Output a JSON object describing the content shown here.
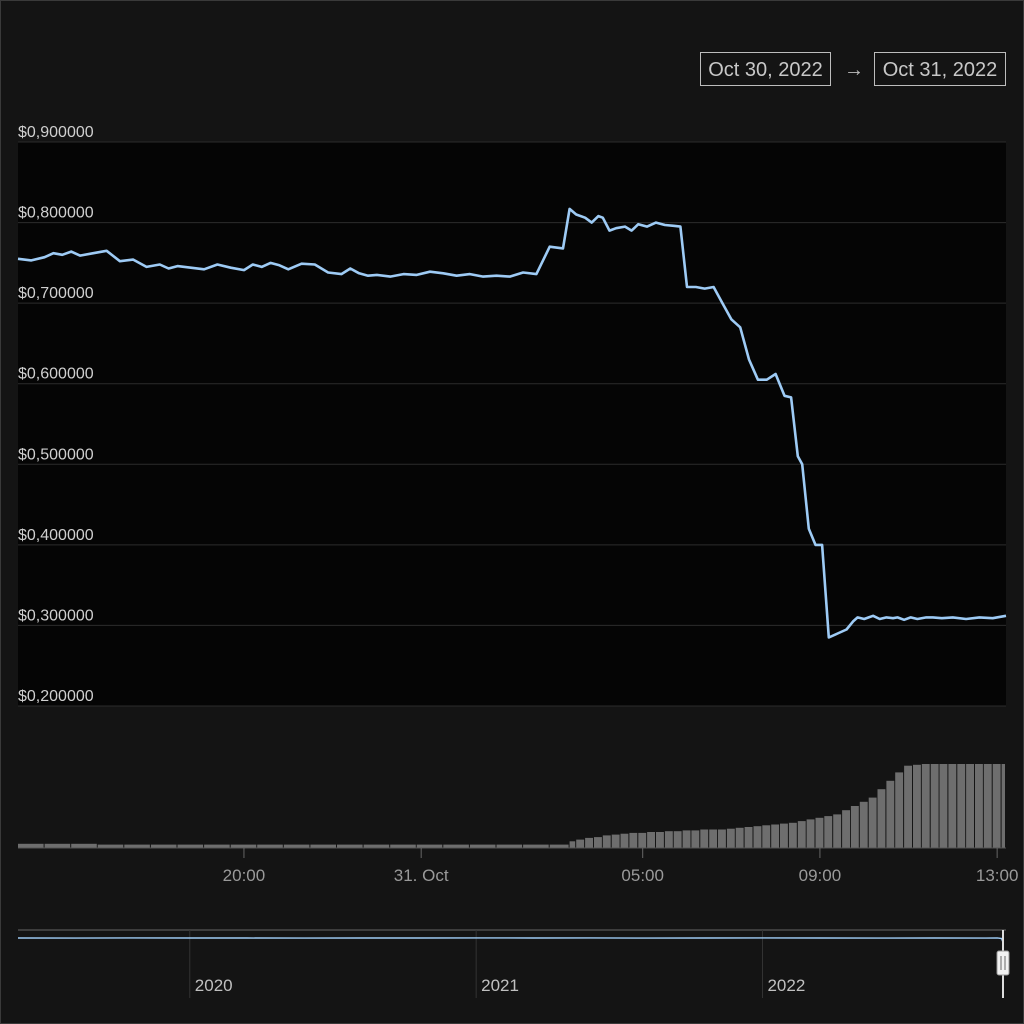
{
  "range_selector": {
    "from": "Oct 30, 2022",
    "arrow": "→",
    "to": "Oct 31, 2022"
  },
  "colors": {
    "background": "#141414",
    "plot_background": "#050505",
    "line": "#9ecbf5",
    "volume": "#6e6e6e",
    "grid": "#2c2c2c"
  },
  "chart_data": {
    "type": "line",
    "title": "",
    "xlabel": "",
    "ylabel": "",
    "ylim": [
      0.2,
      0.9
    ],
    "y_ticks": [
      "$0,900000",
      "$0,800000",
      "$0,700000",
      "$0,600000",
      "$0,500000",
      "$0,400000",
      "$0,300000",
      "$0,200000"
    ],
    "y_tick_values": [
      0.9,
      0.8,
      0.7,
      0.6,
      0.5,
      0.4,
      0.3,
      0.2
    ],
    "x_range_hours": [
      14.9,
      37.2
    ],
    "x_ticks": [
      {
        "label": "20:00",
        "hour": 20
      },
      {
        "label": "31. Oct",
        "hour": 24
      },
      {
        "label": "05:00",
        "hour": 29
      },
      {
        "label": "09:00",
        "hour": 33
      },
      {
        "label": "13:00",
        "hour": 37
      }
    ],
    "series": [
      {
        "x_hours": [
          14.9,
          15.2,
          15.5,
          15.7,
          15.9,
          16.1,
          16.3,
          16.6,
          16.9,
          17.2,
          17.5,
          17.8,
          18.1,
          18.3,
          18.5,
          18.8,
          19.1,
          19.4,
          19.7,
          20.0,
          20.2,
          20.4,
          20.6,
          20.8,
          21.0,
          21.3,
          21.6,
          21.9,
          22.2,
          22.4,
          22.6,
          22.8,
          23.0,
          23.3,
          23.6,
          23.9,
          24.2,
          24.5,
          24.8,
          25.1,
          25.4,
          25.7,
          26.0,
          26.3,
          26.6,
          26.9,
          27.2,
          27.35,
          27.5,
          27.7,
          27.85,
          28.0,
          28.1,
          28.25,
          28.4,
          28.6,
          28.75,
          28.9,
          29.1,
          29.3,
          29.5,
          29.7,
          29.85,
          30.0,
          30.2,
          30.4,
          30.6,
          30.8,
          31.0,
          31.2,
          31.4,
          31.6,
          31.8,
          32.0,
          32.2,
          32.35,
          32.5,
          32.6,
          32.75,
          32.9,
          33.05,
          33.2,
          33.4,
          33.6,
          33.75,
          33.85,
          34.0,
          34.1,
          34.2,
          34.35,
          34.5,
          34.65,
          34.75,
          34.9,
          35.05,
          35.2,
          35.4,
          35.55,
          35.75,
          36.0,
          36.3,
          36.6,
          36.9,
          37.2
        ],
        "values": [
          0.755,
          0.753,
          0.757,
          0.762,
          0.76,
          0.764,
          0.759,
          0.762,
          0.765,
          0.752,
          0.754,
          0.745,
          0.748,
          0.743,
          0.746,
          0.744,
          0.742,
          0.748,
          0.744,
          0.741,
          0.748,
          0.745,
          0.75,
          0.747,
          0.742,
          0.749,
          0.748,
          0.738,
          0.736,
          0.743,
          0.737,
          0.734,
          0.735,
          0.733,
          0.736,
          0.735,
          0.739,
          0.737,
          0.734,
          0.736,
          0.733,
          0.734,
          0.733,
          0.738,
          0.736,
          0.77,
          0.768,
          0.817,
          0.81,
          0.806,
          0.8,
          0.808,
          0.806,
          0.79,
          0.793,
          0.795,
          0.79,
          0.798,
          0.795,
          0.8,
          0.797,
          0.796,
          0.795,
          0.72,
          0.72,
          0.718,
          0.72,
          0.7,
          0.68,
          0.67,
          0.63,
          0.605,
          0.605,
          0.612,
          0.585,
          0.583,
          0.51,
          0.5,
          0.42,
          0.4,
          0.4,
          0.285,
          0.29,
          0.295,
          0.305,
          0.31,
          0.308,
          0.31,
          0.312,
          0.308,
          0.31,
          0.309,
          0.31,
          0.307,
          0.31,
          0.308,
          0.31,
          0.31,
          0.309,
          0.31,
          0.308,
          0.31,
          0.309,
          0.312
        ]
      }
    ],
    "volume": {
      "max": 100,
      "x_hours": [
        14.9,
        15.5,
        16.1,
        16.7,
        17.3,
        17.9,
        18.5,
        19.1,
        19.7,
        20.3,
        20.9,
        21.5,
        22.1,
        22.7,
        23.3,
        23.9,
        24.5,
        25.1,
        25.7,
        26.3,
        26.9,
        27.35,
        27.5,
        27.7,
        27.9,
        28.1,
        28.3,
        28.5,
        28.7,
        28.9,
        29.1,
        29.3,
        29.5,
        29.7,
        29.9,
        30.1,
        30.3,
        30.5,
        30.7,
        30.9,
        31.1,
        31.3,
        31.5,
        31.7,
        31.9,
        32.1,
        32.3,
        32.5,
        32.7,
        32.9,
        33.1,
        33.3,
        33.5,
        33.7,
        33.9,
        34.1,
        34.3,
        34.5,
        34.7,
        34.9,
        35.1,
        35.3,
        35.5,
        35.7,
        35.9,
        36.1,
        36.3,
        36.5,
        36.7,
        36.9,
        37.1
      ],
      "values": [
        5,
        5,
        5,
        4,
        4,
        4,
        4,
        4,
        4,
        4,
        4,
        4,
        4,
        4,
        4,
        4,
        4,
        4,
        4,
        4,
        4,
        8,
        10,
        12,
        13,
        15,
        16,
        17,
        18,
        18,
        19,
        19,
        20,
        20,
        21,
        21,
        22,
        22,
        22,
        23,
        24,
        25,
        26,
        27,
        28,
        29,
        30,
        32,
        34,
        36,
        38,
        40,
        45,
        50,
        55,
        60,
        70,
        80,
        90,
        98,
        99,
        100,
        100,
        100,
        100,
        100,
        100,
        100,
        100,
        100,
        100
      ]
    },
    "navigator": {
      "x_range_years": [
        2019.4,
        2022.84
      ],
      "ticks": [
        {
          "label": "2020",
          "year": 2020
        },
        {
          "label": "2021",
          "year": 2021
        },
        {
          "label": "2022",
          "year": 2022
        }
      ],
      "x_years": [
        2019.4,
        2019.6,
        2019.8,
        2020.0,
        2020.2,
        2020.4,
        2020.6,
        2020.8,
        2021.0,
        2021.2,
        2021.4,
        2021.6,
        2021.8,
        2022.0,
        2022.2,
        2022.4,
        2022.6,
        2022.78,
        2022.82,
        2022.835,
        2022.84
      ],
      "values": [
        0.75,
        0.74,
        0.76,
        0.75,
        0.75,
        0.74,
        0.75,
        0.75,
        0.76,
        0.75,
        0.76,
        0.74,
        0.75,
        0.76,
        0.75,
        0.74,
        0.75,
        0.74,
        0.76,
        0.7,
        0.31
      ]
    }
  }
}
